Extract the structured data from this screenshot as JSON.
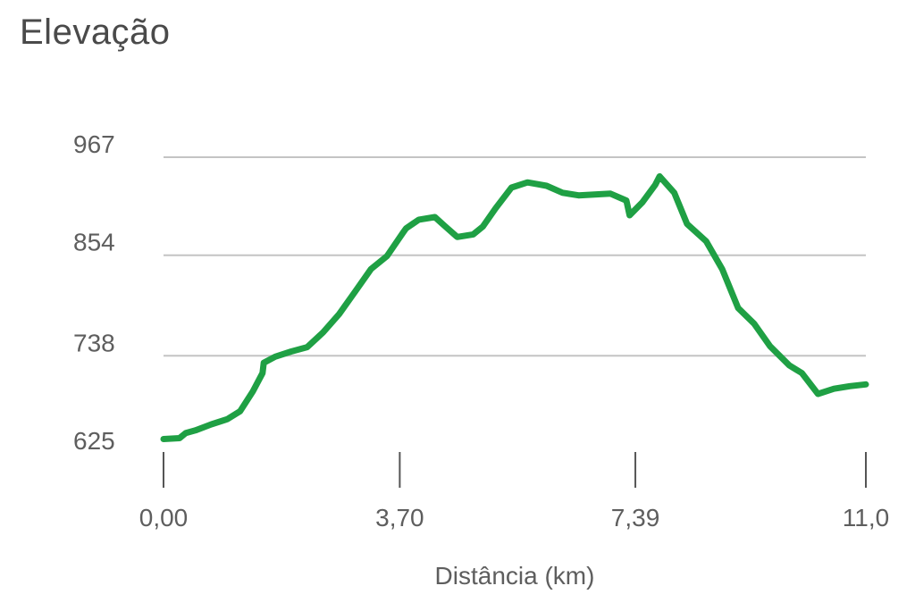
{
  "chart_data": {
    "type": "line",
    "title": "Elevação",
    "xlabel": "Distância (km)",
    "ylabel": "",
    "x_ticks": [
      "0,00",
      "3,70",
      "7,39",
      "11,0"
    ],
    "x_tick_values": [
      0.0,
      3.7,
      7.39,
      11.0
    ],
    "y_ticks": [
      "967",
      "854",
      "738",
      "625"
    ],
    "y_tick_values": [
      967,
      854,
      738,
      625
    ],
    "xlim": [
      0.0,
      11.0
    ],
    "ylim": [
      625,
      967
    ],
    "grid": true,
    "line_color": "#1fa044",
    "series": [
      {
        "x": [
          0.0,
          0.25,
          0.35,
          0.5,
          0.75,
          1.0,
          1.2,
          1.4,
          1.55,
          1.57,
          1.75,
          2.0,
          2.25,
          2.5,
          2.75,
          3.0,
          3.25,
          3.5,
          3.75,
          3.8,
          3.9,
          4.0,
          4.25,
          4.4,
          4.6,
          4.85,
          5.0,
          5.2,
          5.45,
          5.7,
          5.85,
          6.0,
          6.25,
          6.5,
          6.75,
          7.0,
          7.25,
          7.3,
          7.5,
          7.7,
          7.77,
          8.0,
          8.2,
          8.5,
          8.75,
          9.0,
          9.25,
          9.5,
          9.8,
          10.0,
          10.25,
          10.5,
          10.75,
          11.0
        ],
        "y": [
          642,
          643,
          649,
          652,
          659,
          665,
          674,
          697,
          718,
          730,
          737,
          743,
          748,
          765,
          786,
          812,
          838,
          853,
          880,
          885,
          890,
          895,
          898,
          888,
          875,
          878,
          887,
          908,
          932,
          938,
          936,
          934,
          926,
          923,
          924,
          925,
          917,
          900,
          915,
          935,
          945,
          926,
          890,
          870,
          838,
          793,
          775,
          749,
          727,
          718,
          694,
          700,
          703,
          705
        ]
      }
    ]
  }
}
